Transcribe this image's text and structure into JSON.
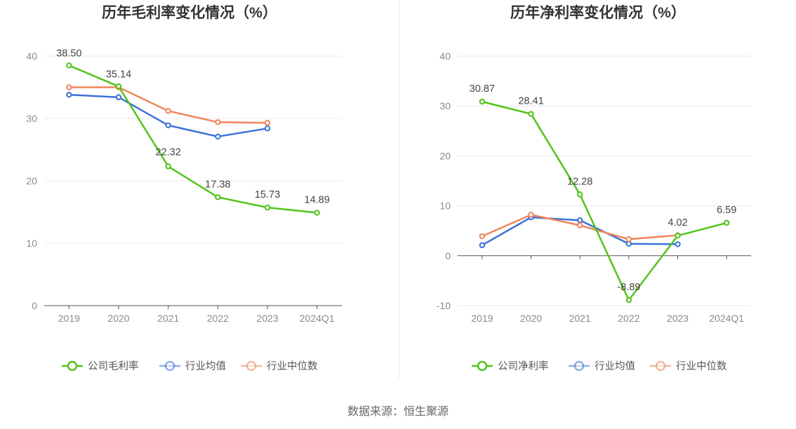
{
  "source": "数据来源：恒生聚源",
  "chart_data": [
    {
      "type": "line",
      "title": "历年毛利率变化情况（%）",
      "categories": [
        "2019",
        "2020",
        "2021",
        "2022",
        "2023",
        "2024Q1"
      ],
      "ylim": [
        0,
        40
      ],
      "yticks": [
        0,
        10,
        20,
        30,
        40
      ],
      "grid": true,
      "legend_position": "bottom",
      "series": [
        {
          "name": "公司毛利率",
          "color": "#52c41a",
          "values": [
            38.5,
            35.14,
            22.32,
            17.38,
            15.73,
            14.89
          ],
          "labels": [
            "38.50",
            "35.14",
            "22.32",
            "17.38",
            "15.73",
            "14.89"
          ]
        },
        {
          "name": "行业均值",
          "color": "#3a72d8",
          "values": [
            33.8,
            33.4,
            28.9,
            27.1,
            28.4,
            null
          ]
        },
        {
          "name": "行业中位数",
          "color": "#f0855a",
          "values": [
            35.0,
            35.0,
            31.2,
            29.4,
            29.3,
            null
          ]
        }
      ]
    },
    {
      "type": "line",
      "title": "历年净利率变化情况（%）",
      "categories": [
        "2019",
        "2020",
        "2021",
        "2022",
        "2023",
        "2024Q1"
      ],
      "ylim": [
        -10,
        40
      ],
      "yticks": [
        -10,
        0,
        10,
        20,
        30,
        40
      ],
      "grid": true,
      "legend_position": "bottom",
      "series": [
        {
          "name": "公司净利率",
          "color": "#52c41a",
          "values": [
            30.87,
            28.41,
            12.28,
            -8.89,
            4.02,
            6.59
          ],
          "labels": [
            "30.87",
            "28.41",
            "12.28",
            "-8.89",
            "4.02",
            "6.59"
          ]
        },
        {
          "name": "行业均值",
          "color": "#3a72d8",
          "values": [
            2.1,
            7.7,
            7.1,
            2.4,
            2.3,
            null
          ]
        },
        {
          "name": "行业中位数",
          "color": "#f0855a",
          "values": [
            3.9,
            8.2,
            6.1,
            3.3,
            4.1,
            null
          ]
        }
      ]
    }
  ]
}
